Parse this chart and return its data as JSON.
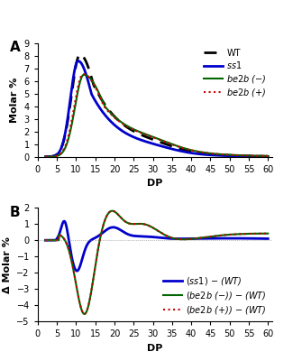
{
  "panel_A": {
    "title": "A",
    "ylabel": "Molar %",
    "xlabel": "DP",
    "ylim": [
      0,
      9
    ],
    "yticks": [
      0,
      1,
      2,
      3,
      4,
      5,
      6,
      7,
      8,
      9
    ],
    "xlim": [
      0,
      60
    ],
    "xticks": [
      0,
      5,
      10,
      15,
      20,
      25,
      30,
      35,
      40,
      45,
      50,
      55,
      60
    ]
  },
  "panel_B": {
    "title": "B",
    "ylabel": "Δ Molar %",
    "xlabel": "DP",
    "ylim": [
      -5,
      2
    ],
    "yticks": [
      -5,
      -4,
      -3,
      -2,
      -1,
      0,
      1,
      2
    ],
    "xlim": [
      0,
      60
    ],
    "xticks": [
      0,
      5,
      10,
      15,
      20,
      25,
      30,
      35,
      40,
      45,
      50,
      55,
      60
    ]
  },
  "colors": {
    "wt": "black",
    "ss1": "#0000cc",
    "be2b_minus": "#006600",
    "be2b_plus": "#cc0000"
  }
}
